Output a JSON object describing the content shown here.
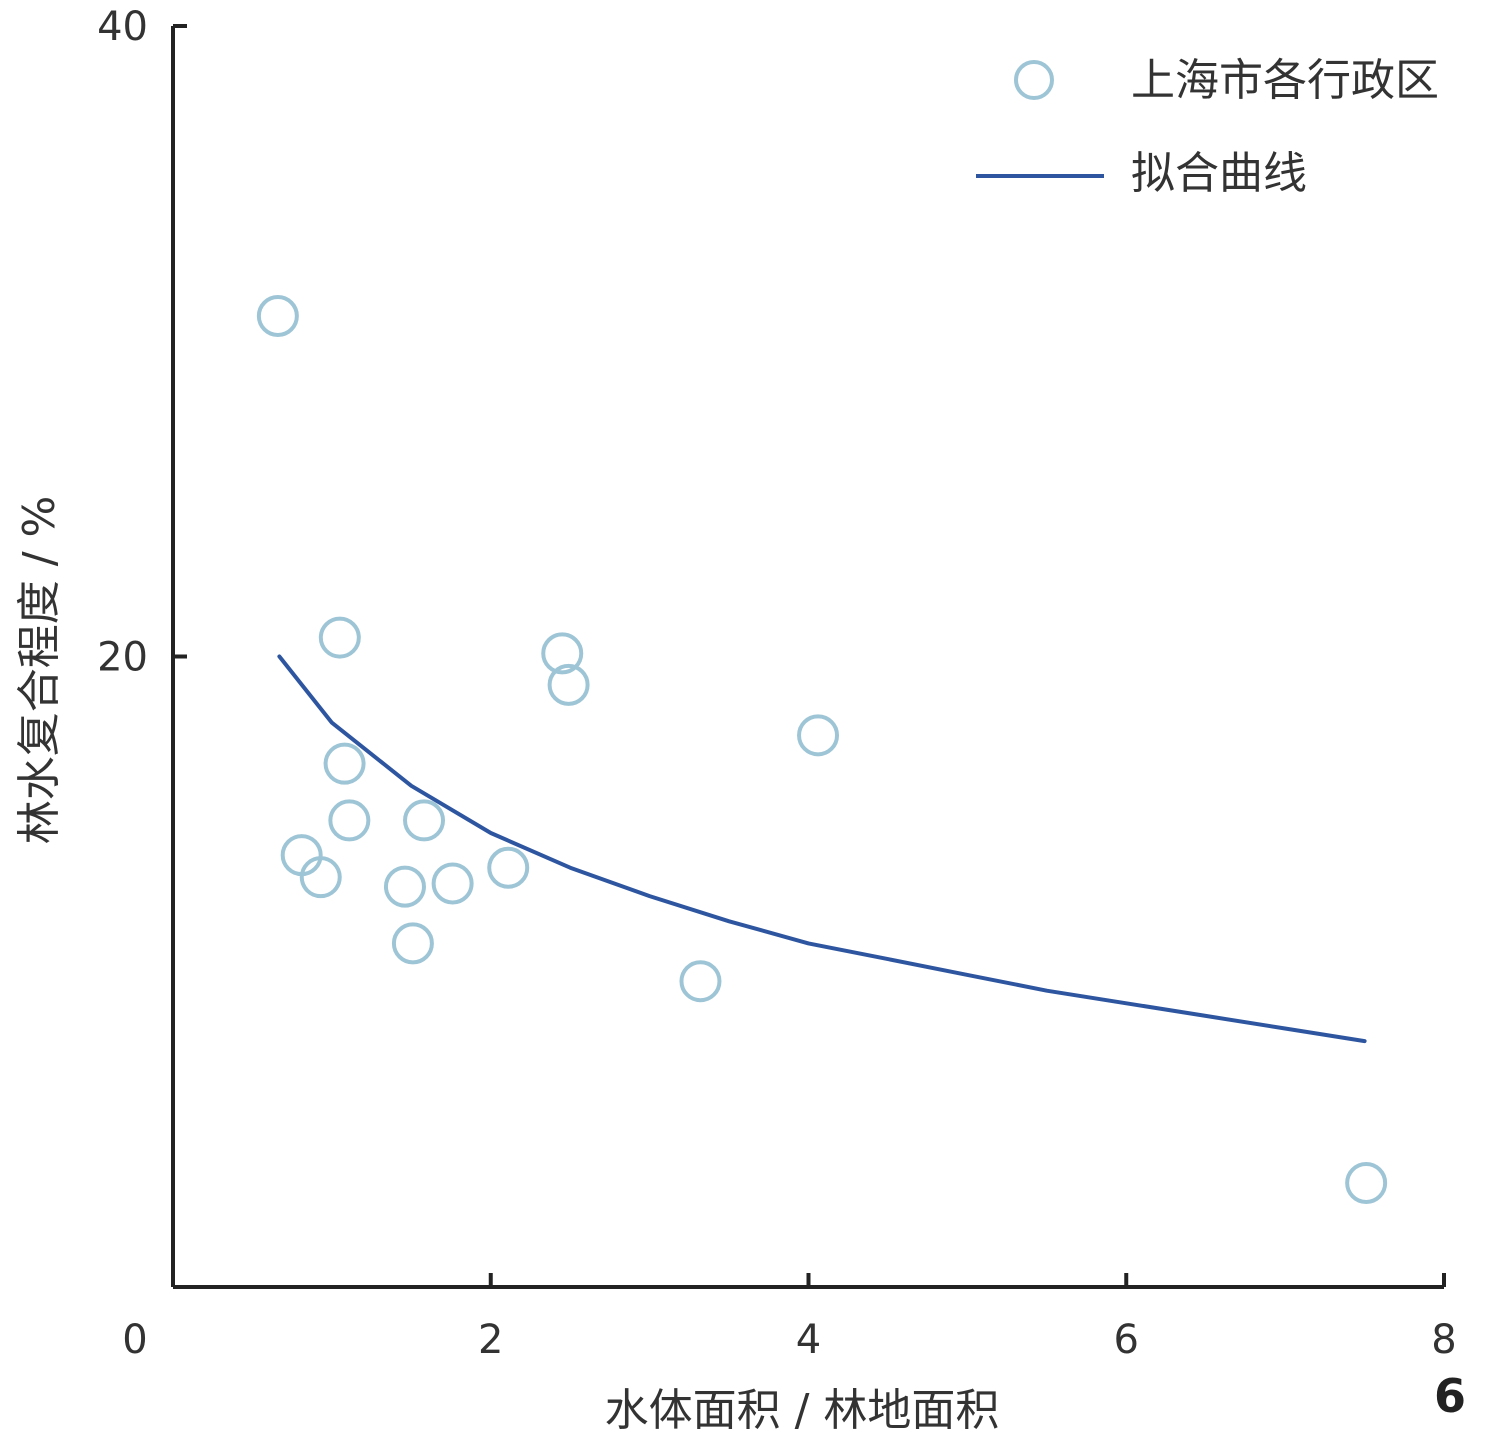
{
  "panel_label": "6",
  "chart_data": {
    "type": "scatter",
    "xlabel": "水体面积 / 林地面积",
    "ylabel": "林水复合程度 / %",
    "xlim": [
      0,
      8
    ],
    "ylim": [
      0,
      40
    ],
    "x_ticks": [
      0,
      2,
      4,
      6,
      8
    ],
    "y_ticks": [
      20,
      40
    ],
    "grid": false,
    "legend_position": "top-right",
    "series": [
      {
        "name": "上海市各行政区",
        "kind": "scatter",
        "marker": "hollow-circle",
        "color": "#9ec5d6",
        "points": [
          {
            "x": 0.66,
            "y": 30.8
          },
          {
            "x": 1.05,
            "y": 20.6
          },
          {
            "x": 1.08,
            "y": 16.6
          },
          {
            "x": 1.11,
            "y": 14.8
          },
          {
            "x": 0.81,
            "y": 13.7
          },
          {
            "x": 0.93,
            "y": 13.0
          },
          {
            "x": 1.46,
            "y": 12.7
          },
          {
            "x": 1.51,
            "y": 10.9
          },
          {
            "x": 1.58,
            "y": 14.8
          },
          {
            "x": 1.76,
            "y": 12.8
          },
          {
            "x": 2.11,
            "y": 13.3
          },
          {
            "x": 2.45,
            "y": 20.1
          },
          {
            "x": 2.49,
            "y": 19.1
          },
          {
            "x": 3.32,
            "y": 9.7
          },
          {
            "x": 4.06,
            "y": 17.5
          },
          {
            "x": 7.51,
            "y": 3.3
          }
        ]
      },
      {
        "name": "拟合曲线",
        "kind": "line",
        "color": "#2e56a0",
        "points": [
          {
            "x": 0.67,
            "y": 20.0
          },
          {
            "x": 1.0,
            "y": 17.9
          },
          {
            "x": 1.5,
            "y": 15.9
          },
          {
            "x": 2.0,
            "y": 14.4
          },
          {
            "x": 2.5,
            "y": 13.3
          },
          {
            "x": 3.0,
            "y": 12.4
          },
          {
            "x": 3.5,
            "y": 11.6
          },
          {
            "x": 4.0,
            "y": 10.9
          },
          {
            "x": 4.5,
            "y": 10.4
          },
          {
            "x": 5.0,
            "y": 9.9
          },
          {
            "x": 5.5,
            "y": 9.4
          },
          {
            "x": 6.0,
            "y": 9.0
          },
          {
            "x": 6.5,
            "y": 8.6
          },
          {
            "x": 7.0,
            "y": 8.2
          },
          {
            "x": 7.5,
            "y": 7.8
          }
        ]
      }
    ]
  }
}
